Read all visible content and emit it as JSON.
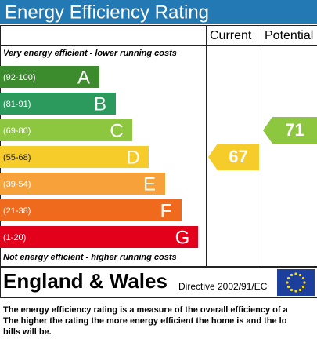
{
  "title": "Energy Efficiency Rating",
  "columns": [
    "Current",
    "Potential"
  ],
  "top_note": "Very energy efficient - lower running costs",
  "bottom_note": "Not energy efficient - higher running costs",
  "bands": [
    {
      "range": "(92-100)",
      "letter": "A",
      "color": "#3c8c2e"
    },
    {
      "range": "(81-91)",
      "letter": "B",
      "color": "#2b9a5c"
    },
    {
      "range": "(69-80)",
      "letter": "C",
      "color": "#8dc63f"
    },
    {
      "range": "(55-68)",
      "letter": "D",
      "color": "#f6cc2a"
    },
    {
      "range": "(39-54)",
      "letter": "E",
      "color": "#f6a13a"
    },
    {
      "range": "(21-38)",
      "letter": "F",
      "color": "#ef6a1c"
    },
    {
      "range": "(1-20)",
      "letter": "G",
      "color": "#e2001a"
    }
  ],
  "current": {
    "value": "67",
    "color": "#f6cc2a",
    "band": 3
  },
  "potential": {
    "value": "71",
    "color": "#8dc63f",
    "band": 2
  },
  "footer": {
    "region": "England & Wales",
    "directive": "Directive 2002/91/EC"
  },
  "description": [
    "The energy efficiency rating is a measure of the overall efficiency of a",
    "The higher the rating the more energy efficient the home is and the lo",
    "bills will be."
  ]
}
